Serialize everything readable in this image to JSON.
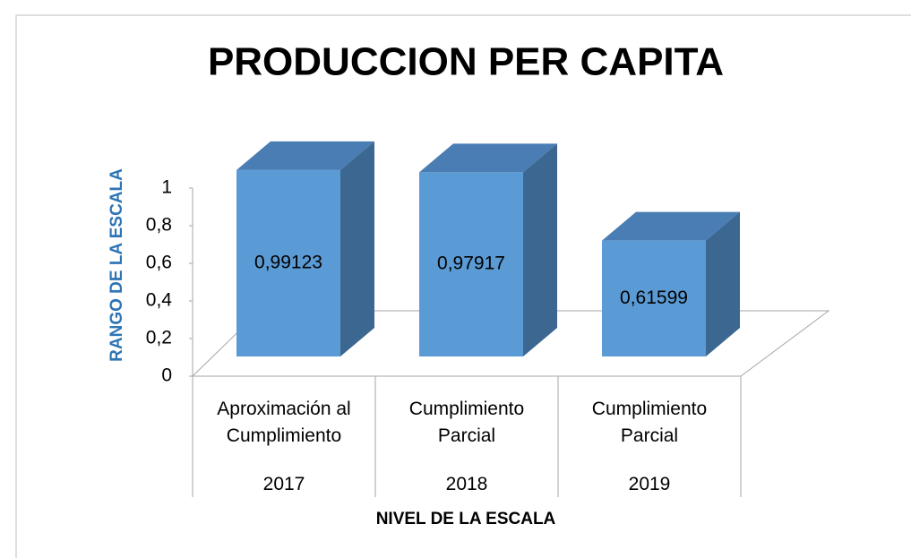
{
  "chart_data": {
    "type": "bar3d",
    "title": "PRODUCCION PER CAPITA",
    "x_label": "NIVEL DE LA ESCALA",
    "y_label": "RANGO DE LA ESCALA",
    "categories": [
      {
        "label": "Aproximación al Cumplimiento",
        "year": "2017"
      },
      {
        "label": "Cumplimiento Parcial",
        "year": "2018"
      },
      {
        "label": "Cumplimiento Parcial",
        "year": "2019"
      }
    ],
    "values": [
      0.99123,
      0.97917,
      0.61599
    ],
    "value_labels": [
      "0,99123",
      "0,97917",
      "0,61599"
    ],
    "color": "#5b9bd5",
    "ylim": [
      0,
      1
    ],
    "yticks": [
      0,
      {
        "value": 0.2,
        "label": "0,2"
      },
      {
        "value": 0.4,
        "label": "0,4"
      },
      {
        "value": 0.6,
        "label": "0,6"
      },
      {
        "value": 0.8,
        "label": "0,8"
      },
      1
    ]
  }
}
